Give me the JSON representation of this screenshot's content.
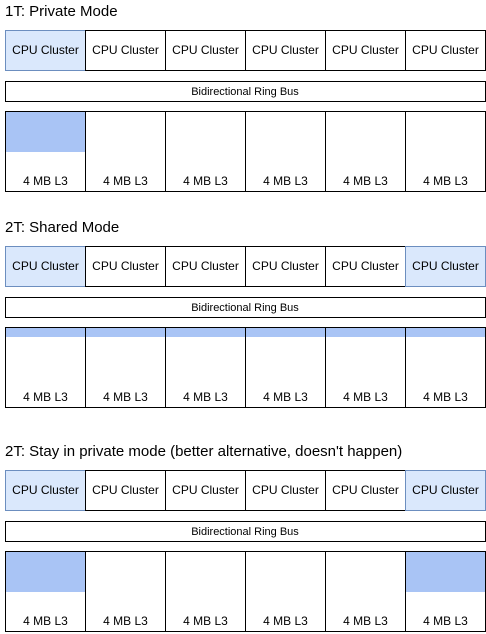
{
  "sections": [
    {
      "title": "1T: Private Mode",
      "clusters": [
        "CPU Cluster",
        "CPU Cluster",
        "CPU Cluster",
        "CPU Cluster",
        "CPU Cluster",
        "CPU Cluster"
      ],
      "bus": "Bidirectional Ring Bus",
      "caches": [
        "4 MB L3",
        "4 MB L3",
        "4 MB L3",
        "4 MB L3",
        "4 MB L3",
        "4 MB L3"
      ]
    },
    {
      "title": "2T: Shared Mode",
      "clusters": [
        "CPU Cluster",
        "CPU Cluster",
        "CPU Cluster",
        "CPU Cluster",
        "CPU Cluster",
        "CPU Cluster"
      ],
      "bus": "Bidirectional Ring Bus",
      "caches": [
        "4 MB L3",
        "4 MB L3",
        "4 MB L3",
        "4 MB L3",
        "4 MB L3",
        "4 MB L3"
      ]
    },
    {
      "title": "2T: Stay in private mode (better alternative, doesn't happen)",
      "clusters": [
        "CPU Cluster",
        "CPU Cluster",
        "CPU Cluster",
        "CPU Cluster",
        "CPU Cluster",
        "CPU Cluster"
      ],
      "bus": "Bidirectional Ring Bus",
      "caches": [
        "4 MB L3",
        "4 MB L3",
        "4 MB L3",
        "4 MB L3",
        "4 MB L3",
        "4 MB L3"
      ]
    }
  ]
}
